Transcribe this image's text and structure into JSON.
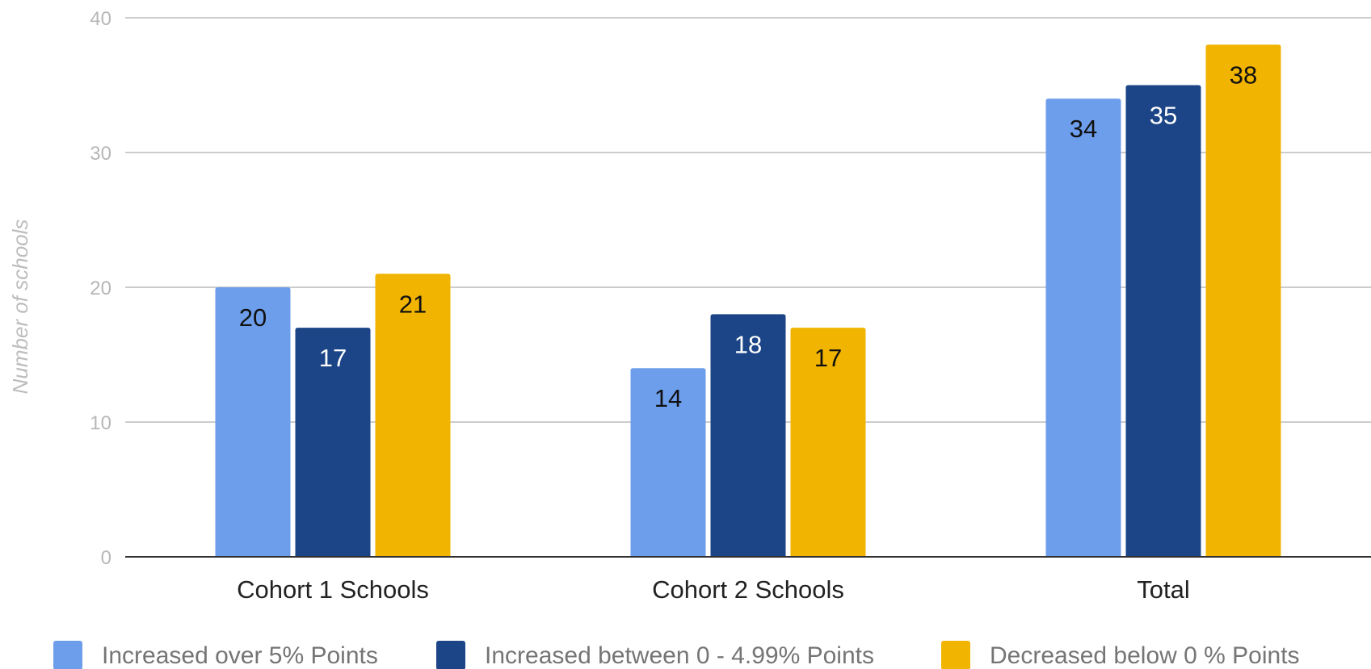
{
  "chart_data": {
    "type": "bar",
    "title": "",
    "xlabel": "",
    "ylabel": "Number of schools",
    "ylim": [
      0,
      40
    ],
    "yticks": [
      0,
      10,
      20,
      30,
      40
    ],
    "grid": true,
    "legend_position": "bottom",
    "categories": [
      "Cohort 1 Schools",
      "Cohort 2 Schools",
      "Total"
    ],
    "series": [
      {
        "name": "Increased over 5% Points",
        "color": "#6d9eeb",
        "label_color": "#111111",
        "values": [
          20,
          14,
          34
        ]
      },
      {
        "name": "Increased between 0 - 4.99% Points",
        "color": "#1c4587",
        "label_color": "#ffffff",
        "values": [
          17,
          18,
          35
        ]
      },
      {
        "name": "Decreased below 0 % Points",
        "color": "#f1b400",
        "label_color": "#111111",
        "values": [
          21,
          17,
          38
        ]
      }
    ]
  }
}
